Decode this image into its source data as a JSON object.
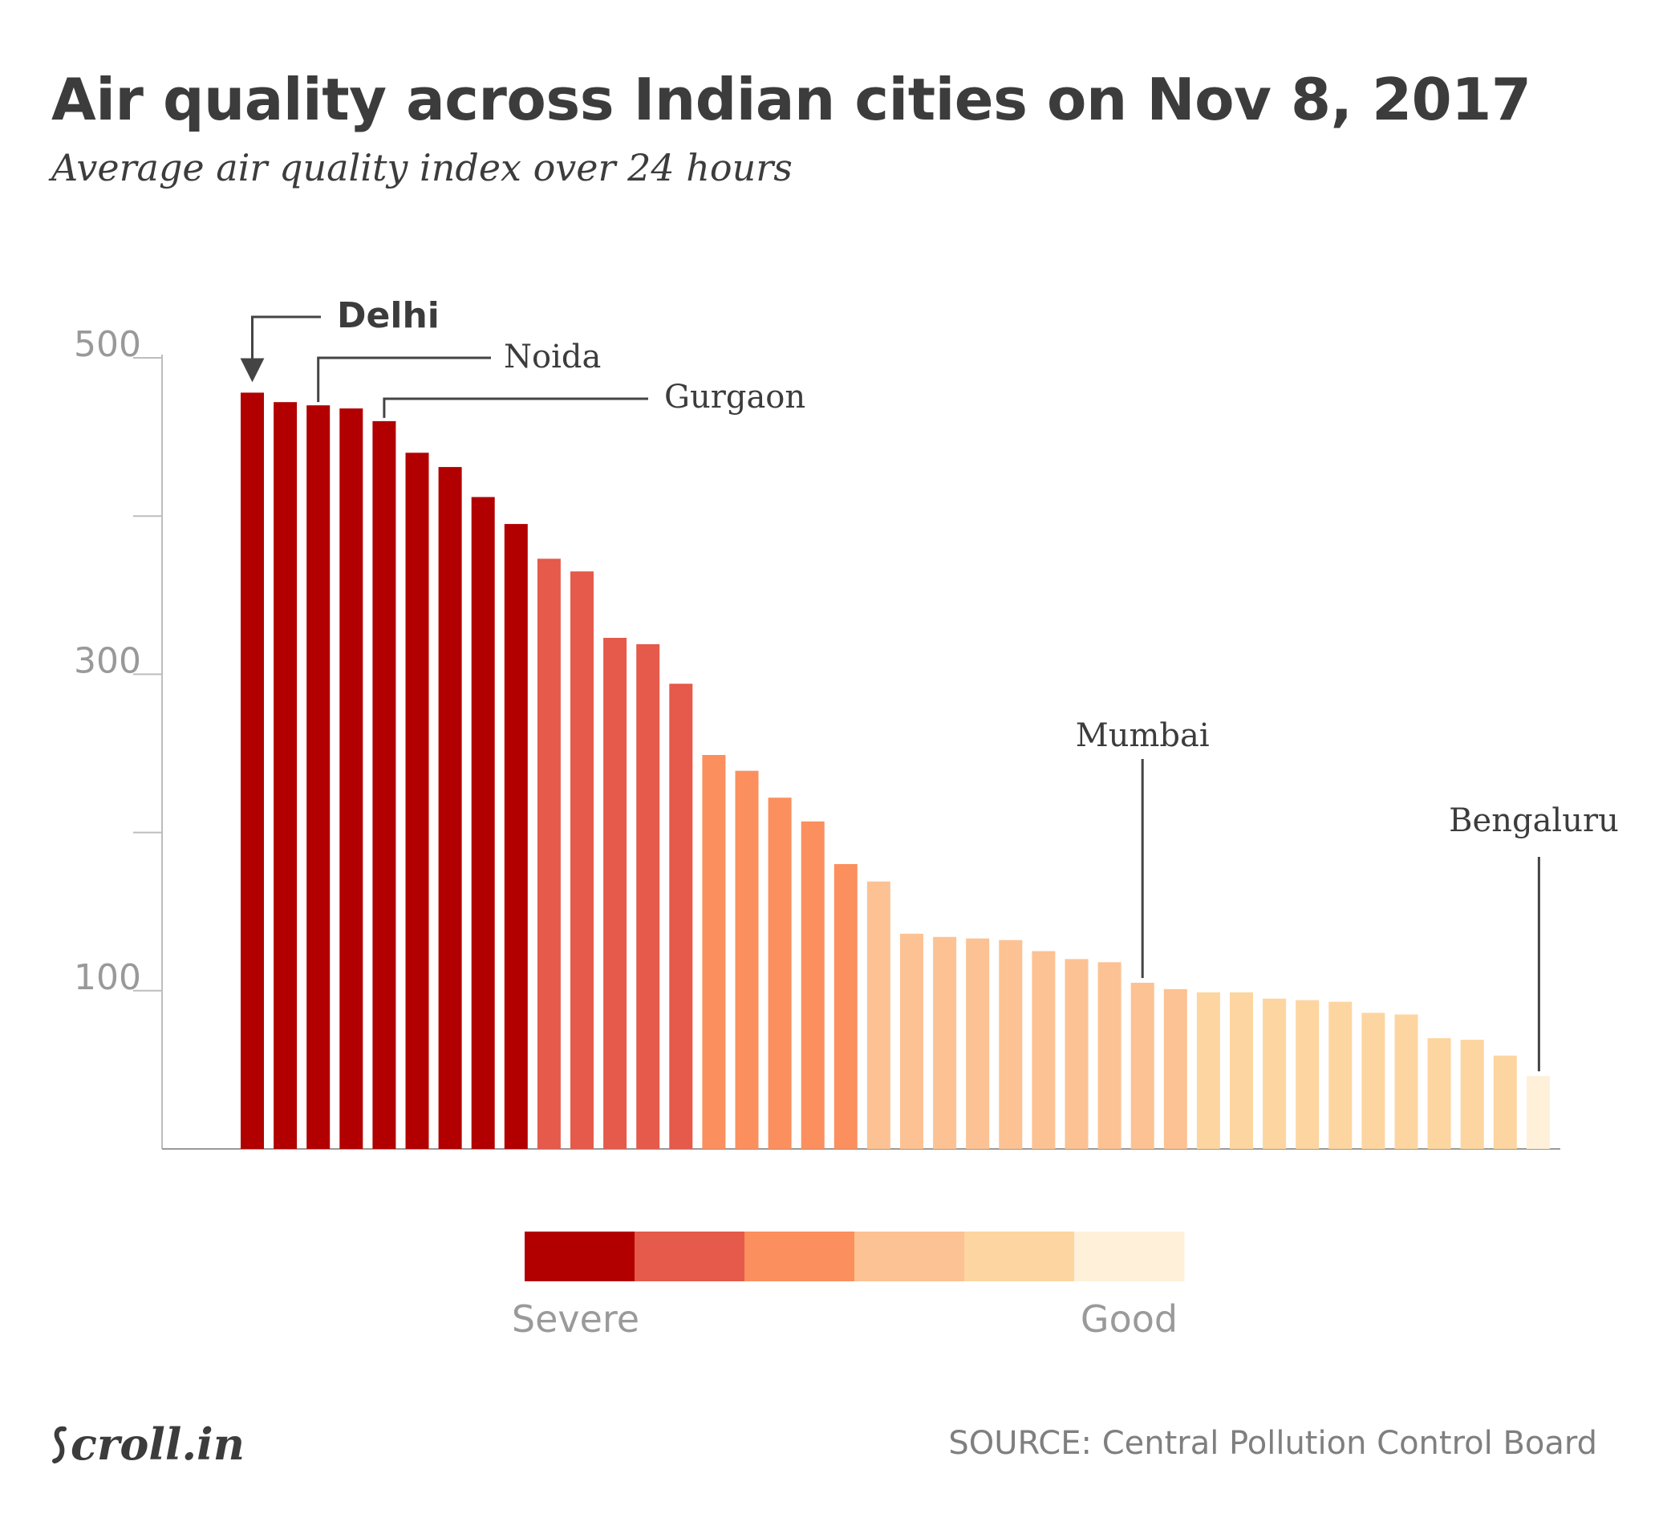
{
  "header": {
    "title": "Air quality across Indian cities on Nov 8, 2017",
    "subtitle": "Average air quality index over 24 hours"
  },
  "footer": {
    "logo": "Scroll.in",
    "source": "SOURCE: Central Pollution Control Board"
  },
  "legend": {
    "colors": [
      "#b20000",
      "#e55a4a",
      "#fb8f5e",
      "#fcc293",
      "#fdd5a0",
      "#fef0d9"
    ],
    "severe_label": "Severe",
    "good_label": "Good"
  },
  "chart_data": {
    "type": "bar",
    "title": "Air quality across Indian cities on Nov 8, 2017",
    "subtitle": "Average air quality index over 24 hours",
    "xlabel": "",
    "ylabel": "",
    "ylim": [
      0,
      500
    ],
    "yticks": [
      100,
      300,
      500
    ],
    "minor_ticks": [
      200,
      400
    ],
    "values": [
      478,
      472,
      470,
      468,
      460,
      440,
      431,
      412,
      395,
      373,
      365,
      323,
      319,
      294,
      249,
      239,
      222,
      207,
      180,
      169,
      136,
      134,
      133,
      132,
      125,
      120,
      118,
      105,
      101,
      99,
      99,
      95,
      94,
      93,
      86,
      85,
      70,
      69,
      59,
      46
    ],
    "color_classes": [
      0,
      0,
      0,
      0,
      0,
      0,
      0,
      0,
      0,
      1,
      1,
      1,
      1,
      1,
      2,
      2,
      2,
      2,
      2,
      3,
      3,
      3,
      3,
      3,
      3,
      3,
      3,
      3,
      3,
      4,
      4,
      4,
      4,
      4,
      4,
      4,
      4,
      4,
      4,
      5
    ],
    "annotations": [
      {
        "label": "Delhi",
        "index": 0,
        "bold": true
      },
      {
        "label": "Noida",
        "index": 2,
        "bold": false
      },
      {
        "label": "Gurgaon",
        "index": 4,
        "bold": false
      },
      {
        "label": "Mumbai",
        "index": 27,
        "bold": false
      },
      {
        "label": "Bengaluru",
        "index": 39,
        "bold": false
      }
    ]
  }
}
